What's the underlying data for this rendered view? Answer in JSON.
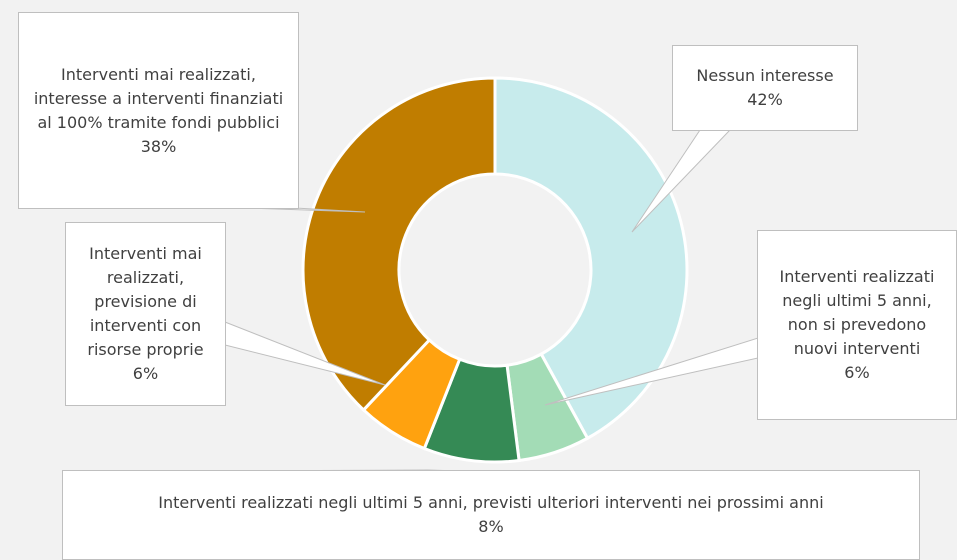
{
  "chart_data": {
    "type": "donut",
    "categories": [
      "Nessun interesse",
      "Interventi realizzati negli ultimi 5 anni, non si prevedono nuovi interventi",
      "Interventi realizzati negli ultimi 5 anni, previsti ulteriori interventi nei prossimi anni",
      "Interventi mai realizzati, previsione di interventi con risorse proprie",
      "Interventi mai realizzati, interesse a interventi finanziati al 100% tramite fondi pubblici"
    ],
    "values": [
      42,
      6,
      8,
      6,
      38
    ],
    "value_labels": [
      "42%",
      "6%",
      "8%",
      "6%",
      "38%"
    ],
    "colors": [
      "#c7ebec",
      "#a3dcb6",
      "#358a55",
      "#ffa20f",
      "#c07d00"
    ]
  }
}
